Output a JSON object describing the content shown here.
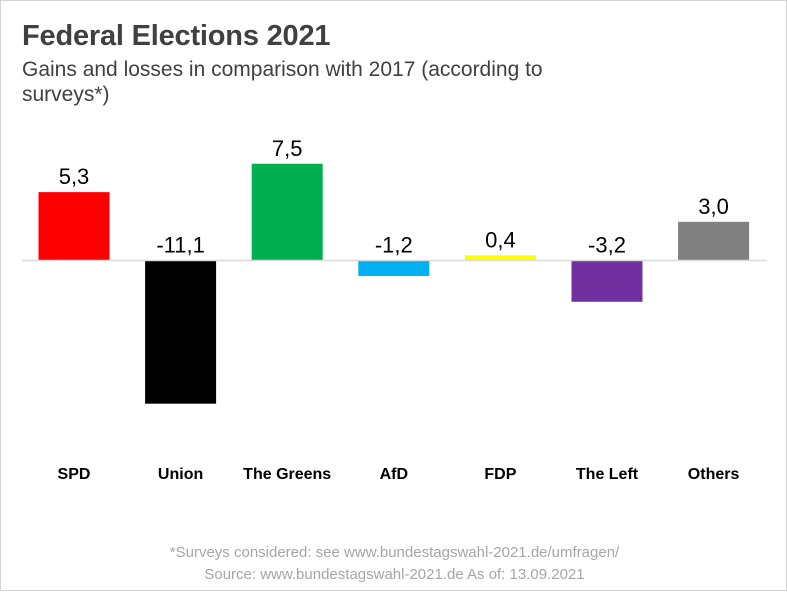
{
  "chart_data": {
    "type": "bar",
    "title": "Federal Elections 2021",
    "subtitle": "Gains and losses in comparison with 2017 (according to surveys*)",
    "categories": [
      "SPD",
      "Union",
      "The Greens",
      "AfD",
      "FDP",
      "The Left",
      "Others"
    ],
    "values": [
      5.3,
      -11.1,
      7.5,
      -1.2,
      0.4,
      -3.2,
      3.0
    ],
    "value_labels": [
      "5,3",
      "-11,1",
      "7,5",
      "-1,2",
      "0,4",
      "-3,2",
      "3,0"
    ],
    "colors": [
      "#ff0000",
      "#000000",
      "#00b050",
      "#00b0f0",
      "#ffff00",
      "#7030a0",
      "#808080"
    ],
    "xlabel": "",
    "ylabel": "",
    "ylim": [
      -11.1,
      7.5
    ],
    "grid": false,
    "legend": "none"
  },
  "footer": {
    "note": "*Surveys considered: see www.bundestagswahl-2021.de/umfragen/",
    "source": "Source: www.bundestagswahl-2021.de As of: 13.09.2021"
  }
}
